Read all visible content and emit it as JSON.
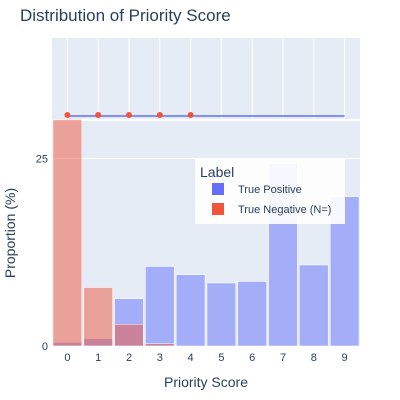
{
  "chart_data": {
    "type": "bar",
    "title": "Distribution of Priority Score",
    "xlabel": "Priority Score",
    "ylabel": "Proportion (%)",
    "categories": [
      "0",
      "1",
      "2",
      "3",
      "4",
      "5",
      "6",
      "7",
      "8",
      "9"
    ],
    "ylim": [
      0,
      30
    ],
    "y_ticks": [
      "0",
      "25"
    ],
    "y_tick_values": [
      0,
      25
    ],
    "grid": true,
    "barmode": "overlay",
    "legend": {
      "title": "Label",
      "placement": "right",
      "entries": [
        "True Positive",
        "True Negative (N=)"
      ]
    },
    "series": [
      {
        "name": "True Positive",
        "color": "#636efa",
        "values": [
          0.5,
          1.0,
          6.3,
          10.6,
          9.5,
          8.4,
          8.6,
          24.3,
          10.8,
          19.9
        ]
      },
      {
        "name": "True Negative (N=)",
        "color": "#ef553b",
        "values": [
          30.2,
          7.8,
          2.9,
          0.3,
          0,
          0,
          0,
          0,
          0,
          0
        ]
      }
    ],
    "marginal": {
      "type": "rug",
      "series": [
        {
          "name": "True Positive",
          "color": "#636efa",
          "x": [
            0,
            1,
            2,
            3,
            4,
            5,
            6,
            7,
            8,
            9
          ]
        },
        {
          "name": "True Negative (N=)",
          "color": "#ef553b",
          "x": [
            1,
            2,
            3,
            4,
            5
          ]
        }
      ]
    }
  }
}
